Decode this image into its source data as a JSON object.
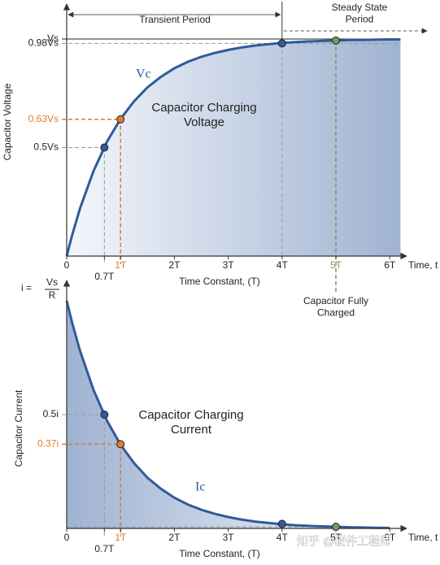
{
  "chart_data": [
    {
      "type": "line",
      "y_label": "Capacitor Voltage",
      "x_label": "Time Constant, (T)",
      "x_axis_end": "Time, t",
      "curve_label": "Vc",
      "title": "Capacitor Charging\nVoltage",
      "transient": "Transient Period",
      "steady": "Steady State\nPeriod",
      "note": "Capacitor Fully\nCharged",
      "x": [
        0,
        0.1,
        0.25,
        0.5,
        0.75,
        1,
        1.25,
        1.5,
        1.75,
        2,
        2.25,
        2.5,
        2.75,
        3,
        3.25,
        3.5,
        3.75,
        4,
        4.25,
        4.5,
        4.75,
        5,
        5.25,
        5.5,
        5.75,
        6,
        6.2
      ],
      "series": [
        {
          "color": "#2f5b9a",
          "values": [
            0,
            0.095,
            0.221,
            0.393,
            0.528,
            0.632,
            0.713,
            0.777,
            0.826,
            0.865,
            0.895,
            0.918,
            0.936,
            0.95,
            0.961,
            0.97,
            0.976,
            0.982,
            0.986,
            0.989,
            0.991,
            0.993,
            0.995,
            0.996,
            0.997,
            0.998,
            0.998
          ]
        }
      ],
      "highlights": {
        "x": [
          0.7,
          1,
          4,
          5
        ],
        "values": [
          0.5,
          0.63,
          0.98,
          0.993
        ],
        "colors": [
          "#2f5b9a",
          "#e07b2c",
          "#2f5b9a",
          "#7a9a5a"
        ]
      },
      "xlim": [
        0,
        6.2
      ],
      "ylim": [
        0,
        1
      ],
      "xticks": [
        0,
        {
          "value": 0.7,
          "label": "0.7T"
        },
        {
          "value": 1,
          "label": "1T"
        },
        {
          "value": 2,
          "label": "2T"
        },
        {
          "value": 3,
          "label": "3T"
        },
        {
          "value": 4,
          "label": "4T"
        },
        {
          "value": 5,
          "label": "5T"
        },
        {
          "value": 6,
          "label": "6T"
        }
      ],
      "yticks": [
        {
          "value": 1,
          "label": "Vs"
        },
        {
          "value": 0.98,
          "label": "0.98Vs"
        },
        {
          "value": 0.63,
          "label": "0.63Vs"
        },
        {
          "value": 0.5,
          "label": "0.5Vs"
        }
      ]
    },
    {
      "type": "line",
      "y_label": "Capacitor Current",
      "x_label": "Time Constant, (T)",
      "x_axis_end": "Time, t",
      "curve_label": "Ic",
      "title": "Capacitor Charging\nCurrent",
      "i_eq": "i =",
      "i_num": "Vs",
      "i_den": "R",
      "watermark": "知乎 @硬件工程师",
      "x": [
        0,
        0.1,
        0.25,
        0.5,
        0.75,
        1,
        1.25,
        1.5,
        1.75,
        2,
        2.25,
        2.5,
        2.75,
        3,
        3.25,
        3.5,
        3.75,
        4,
        4.25,
        4.5,
        4.75,
        5,
        5.25,
        5.5,
        5.75,
        6
      ],
      "series": [
        {
          "color": "#2f5b9a",
          "values": [
            1,
            0.905,
            0.779,
            0.607,
            0.472,
            0.368,
            0.287,
            0.223,
            0.174,
            0.135,
            0.105,
            0.082,
            0.064,
            0.05,
            0.039,
            0.03,
            0.024,
            0.018,
            0.014,
            0.011,
            0.009,
            0.007,
            0.005,
            0.004,
            0.003,
            0.002
          ]
        }
      ],
      "highlights": {
        "x": [
          0.7,
          1,
          4,
          5
        ],
        "values": [
          0.5,
          0.37,
          0.02,
          0.007
        ],
        "colors": [
          "#2f5b9a",
          "#e07b2c",
          "#2f5b9a",
          "#7a9a5a"
        ]
      },
      "xlim": [
        0,
        6.2
      ],
      "ylim": [
        0,
        1
      ],
      "xticks": [
        0,
        {
          "value": 0.7,
          "label": "0.7T"
        },
        {
          "value": 1,
          "label": "1T"
        },
        {
          "value": 2,
          "label": "2T"
        },
        {
          "value": 3,
          "label": "3T"
        },
        {
          "value": 4,
          "label": "4T"
        },
        {
          "value": 5,
          "label": "5T"
        },
        {
          "value": 6,
          "label": "6T"
        }
      ],
      "yticks": [
        {
          "value": 0.5,
          "label": "0.5i"
        },
        {
          "value": 0.37,
          "label": "0.37i"
        }
      ]
    }
  ]
}
